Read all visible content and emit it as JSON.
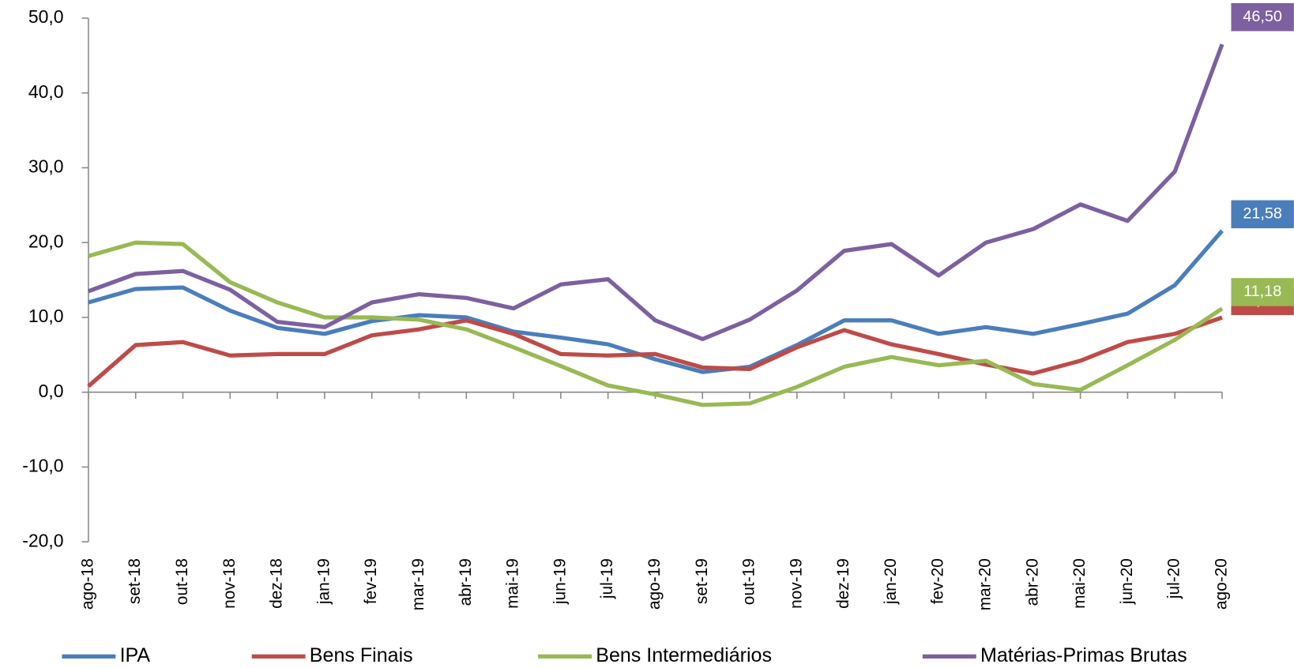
{
  "chart_data": {
    "type": "line",
    "categories": [
      "ago-18",
      "set-18",
      "out-18",
      "nov-18",
      "dez-18",
      "jan-19",
      "fev-19",
      "mar-19",
      "abr-19",
      "mai-19",
      "jun-19",
      "jul-19",
      "ago-19",
      "set-19",
      "out-19",
      "nov-19",
      "dez-19",
      "jan-20",
      "fev-20",
      "mar-20",
      "abr-20",
      "mai-20",
      "jun-20",
      "jul-20",
      "ago-20"
    ],
    "series": [
      {
        "name": "IPA",
        "color": "#4a7ebb",
        "values": [
          12.0,
          13.8,
          14.0,
          10.9,
          8.6,
          7.8,
          9.5,
          10.3,
          10.0,
          8.1,
          7.3,
          6.4,
          4.4,
          2.7,
          3.4,
          6.3,
          9.6,
          9.6,
          7.8,
          8.7,
          7.8,
          9.1,
          10.5,
          14.3,
          21.58
        ],
        "value_labels": [
          null,
          null,
          null,
          null,
          null,
          null,
          null,
          null,
          null,
          null,
          null,
          null,
          null,
          null,
          null,
          null,
          null,
          null,
          null,
          null,
          null,
          null,
          null,
          null,
          "21,58"
        ]
      },
      {
        "name": "Bens Finais",
        "color": "#be4b48",
        "values": [
          0.8,
          6.3,
          6.7,
          4.9,
          5.1,
          5.1,
          7.6,
          8.4,
          9.6,
          7.8,
          5.1,
          4.9,
          5.1,
          3.3,
          3.1,
          6.0,
          8.3,
          6.4,
          5.1,
          3.7,
          2.5,
          4.2,
          6.7,
          7.8,
          9.98
        ],
        "value_labels": [
          null,
          null,
          null,
          null,
          null,
          null,
          null,
          null,
          null,
          null,
          null,
          null,
          null,
          null,
          null,
          null,
          null,
          null,
          null,
          null,
          null,
          null,
          null,
          null,
          "9,98"
        ]
      },
      {
        "name": "Bens Intermediários",
        "color": "#98b954",
        "values": [
          18.2,
          20.0,
          19.8,
          14.7,
          12.0,
          10.0,
          10.0,
          9.7,
          8.4,
          6.0,
          3.5,
          0.9,
          -0.3,
          -1.7,
          -1.5,
          0.7,
          3.4,
          4.7,
          3.6,
          4.2,
          1.1,
          0.3,
          3.6,
          7.0,
          11.18
        ],
        "value_labels": [
          null,
          null,
          null,
          null,
          null,
          null,
          null,
          null,
          null,
          null,
          null,
          null,
          null,
          null,
          null,
          null,
          null,
          null,
          null,
          null,
          null,
          null,
          null,
          null,
          "11,18"
        ]
      },
      {
        "name": "Matérias-Primas Brutas",
        "color": "#7d60a0",
        "values": [
          13.5,
          15.8,
          16.2,
          13.7,
          9.4,
          8.7,
          12.0,
          13.1,
          12.6,
          11.2,
          14.4,
          15.1,
          9.6,
          7.1,
          9.7,
          13.6,
          18.9,
          19.8,
          15.6,
          20.0,
          21.8,
          25.1,
          22.9,
          29.5,
          46.5
        ],
        "value_labels": [
          null,
          null,
          null,
          null,
          null,
          null,
          null,
          null,
          null,
          null,
          null,
          null,
          null,
          null,
          null,
          null,
          null,
          null,
          null,
          null,
          null,
          null,
          null,
          null,
          "46,50"
        ]
      }
    ],
    "ylim": [
      -20,
      50
    ],
    "yticks": [
      {
        "value": -20,
        "label": "-20,0"
      },
      {
        "value": -10,
        "label": "-10,0"
      },
      {
        "value": 0,
        "label": "0,0"
      },
      {
        "value": 10,
        "label": "10,0"
      },
      {
        "value": 20,
        "label": "20,0"
      },
      {
        "value": 30,
        "label": "30,0"
      },
      {
        "value": 40,
        "label": "40,0"
      },
      {
        "value": 50,
        "label": "50,0"
      }
    ],
    "grid": false,
    "legend": "bottom"
  }
}
